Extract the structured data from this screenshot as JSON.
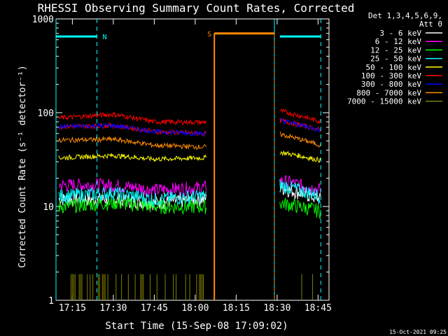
{
  "chart_data": {
    "type": "line",
    "title": "RHESSI Observing Summary Count Rates, Corrected",
    "xlabel": "Start Time (15-Sep-08 17:09:02)",
    "ylabel": "Corrected Count Rate (s⁻¹ detector⁻¹)",
    "yscale": "log",
    "ylim": [
      1,
      1000
    ],
    "xlim": [
      "17:09",
      "18:49"
    ],
    "x_ticks": [
      "17:15",
      "17:30",
      "17:45",
      "18:00",
      "18:15",
      "18:30",
      "18:45"
    ],
    "y_ticks": [
      "1",
      "10",
      "100",
      "1000"
    ],
    "footer": "15-Oct-2021 09:25",
    "legend_header": [
      "Det 1,3,4,5,6,9,",
      "Att 0"
    ],
    "legend_position": "right",
    "flags": [
      {
        "label": "N",
        "color": "#00ffff",
        "start": "17:09",
        "end": "17:24",
        "level": 650
      },
      {
        "label": "",
        "color": "#00ffff",
        "start": "18:31",
        "end": "18:46",
        "level": 650
      },
      {
        "label": "S",
        "color": "#ff8c00",
        "start": "18:07",
        "end": "18:29",
        "level": 700
      }
    ],
    "night_markers": [
      "17:09",
      "17:24",
      "18:29",
      "18:46"
    ],
    "gap": [
      "18:04",
      "18:30"
    ],
    "series": [
      {
        "name": "3 - 6 keV",
        "color": "#ffffff",
        "values": [
          [
            "17:10",
            12
          ],
          [
            "17:30",
            12
          ],
          [
            "17:45",
            11
          ],
          [
            "18:03",
            12
          ],
          [
            "18:31",
            16
          ],
          [
            "18:46",
            12
          ]
        ]
      },
      {
        "name": "6 - 12 keV",
        "color": "#ff00ff",
        "values": [
          [
            "17:10",
            17
          ],
          [
            "17:30",
            17
          ],
          [
            "17:45",
            15
          ],
          [
            "18:03",
            16
          ],
          [
            "18:31",
            19
          ],
          [
            "18:46",
            15
          ]
        ]
      },
      {
        "name": "12 - 25 keV",
        "color": "#00ff00",
        "values": [
          [
            "17:10",
            10
          ],
          [
            "17:30",
            11
          ],
          [
            "17:45",
            10
          ],
          [
            "18:03",
            10
          ],
          [
            "18:31",
            11
          ],
          [
            "18:46",
            9
          ]
        ]
      },
      {
        "name": "25 - 50 keV",
        "color": "#00ffff",
        "values": [
          [
            "17:10",
            13
          ],
          [
            "17:30",
            14
          ],
          [
            "17:45",
            12
          ],
          [
            "18:03",
            13
          ],
          [
            "18:31",
            17
          ],
          [
            "18:46",
            13
          ]
        ]
      },
      {
        "name": "50 - 100 keV",
        "color": "#ffff00",
        "values": [
          [
            "17:10",
            33
          ],
          [
            "17:30",
            35
          ],
          [
            "17:45",
            32
          ],
          [
            "18:03",
            33
          ],
          [
            "18:31",
            38
          ],
          [
            "18:46",
            31
          ]
        ]
      },
      {
        "name": "100 - 300 keV",
        "color": "#ff0000",
        "values": [
          [
            "17:10",
            88
          ],
          [
            "17:30",
            96
          ],
          [
            "17:45",
            80
          ],
          [
            "18:03",
            79
          ],
          [
            "18:31",
            105
          ],
          [
            "18:46",
            80
          ]
        ]
      },
      {
        "name": "300 - 800 keV",
        "color": "#ff0000",
        "values": [
          [
            "17:10",
            71
          ],
          [
            "17:30",
            73
          ],
          [
            "17:45",
            63
          ],
          [
            "18:03",
            60
          ],
          [
            "18:31",
            83
          ],
          [
            "18:46",
            65
          ]
        ]
      },
      {
        "name": "800 - 7000 keV",
        "color": "#ff8c00",
        "values": [
          [
            "17:10",
            51
          ],
          [
            "17:30",
            52
          ],
          [
            "17:45",
            45
          ],
          [
            "18:03",
            43
          ],
          [
            "18:31",
            59
          ],
          [
            "18:46",
            45
          ]
        ]
      },
      {
        "name": "7000 - 15000 keV",
        "color": "#808000",
        "values": [
          [
            "17:14",
            1.9
          ],
          [
            "17:28",
            1.9
          ],
          [
            "18:03",
            1.9
          ],
          [
            "18:31",
            1.9
          ]
        ]
      }
    ],
    "blue_series": {
      "name": "",
      "color": "#0000ff"
    }
  }
}
